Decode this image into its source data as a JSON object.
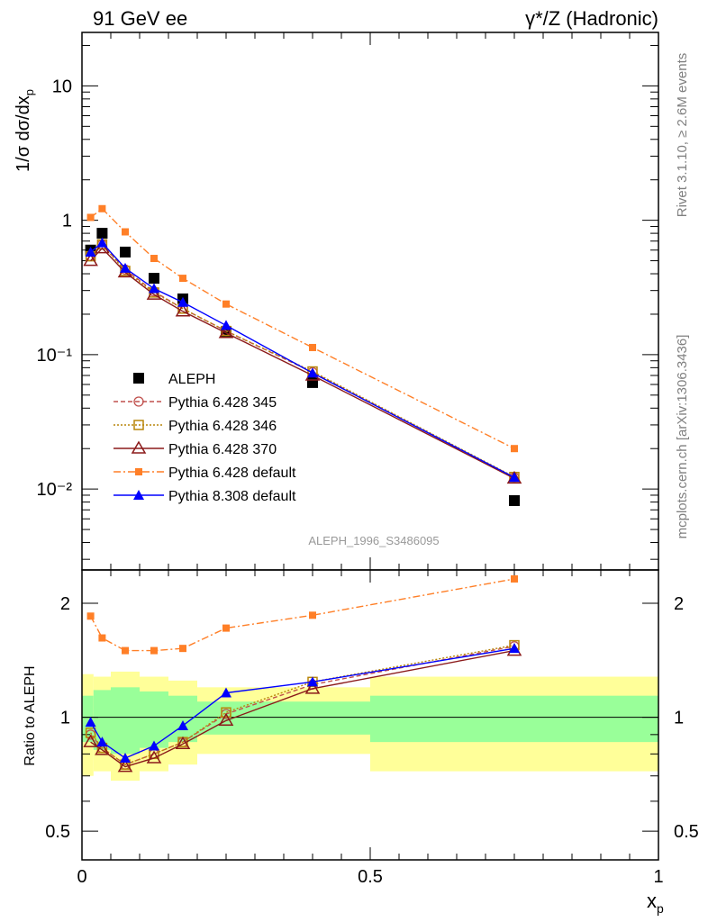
{
  "header": {
    "left_title": "91 GeV ee",
    "right_title": "γ*/Z (Hadronic)"
  },
  "side_text": {
    "rivet": "Rivet 3.1.10, ≥ 2.6M events",
    "mcplots": "mcplots.cern.ch [arXiv:1306.3436]"
  },
  "analysis_tag": "ALEPH_1996_S3486095",
  "colors": {
    "aleph": "#000000",
    "p345": "#c0504d",
    "p346": "#b8860b",
    "p370": "#8b1a1a",
    "p6def": "#ff7f27",
    "p8def": "#0000ff",
    "band_inner": "#99ff99",
    "band_outer": "#ffff99"
  },
  "chart_data": [
    {
      "type": "line",
      "panel": "main",
      "ylabel": "1/σ dσ/dx_p",
      "yscale": "log",
      "ylim": [
        0.0025,
        25
      ],
      "xlim": [
        0,
        1
      ],
      "y_ticks": [
        "10⁻²",
        "10⁻¹",
        "1",
        "10"
      ],
      "x": [
        0.015,
        0.035,
        0.075,
        0.125,
        0.175,
        0.25,
        0.4,
        0.75
      ],
      "series": [
        {
          "name": "ALEPH",
          "style": "data",
          "values": [
            0.6,
            0.8,
            0.58,
            0.37,
            0.26,
            0.148,
            0.062,
            0.0082
          ]
        },
        {
          "name": "Pythia 6.428 345",
          "style": "p345",
          "values": [
            0.54,
            0.66,
            0.43,
            0.295,
            0.22,
            0.15,
            0.074,
            0.0122
          ]
        },
        {
          "name": "Pythia 6.428 346",
          "style": "p346",
          "values": [
            0.54,
            0.66,
            0.42,
            0.29,
            0.22,
            0.15,
            0.075,
            0.0123
          ]
        },
        {
          "name": "Pythia 6.428 370",
          "style": "p370",
          "values": [
            0.5,
            0.62,
            0.41,
            0.28,
            0.21,
            0.145,
            0.07,
            0.012
          ]
        },
        {
          "name": "Pythia 6.428 default",
          "style": "p6def",
          "values": [
            1.05,
            1.22,
            0.82,
            0.52,
            0.37,
            0.238,
            0.113,
            0.02
          ]
        },
        {
          "name": "Pythia 8.308 default",
          "style": "p8def",
          "values": [
            0.58,
            0.68,
            0.44,
            0.31,
            0.245,
            0.165,
            0.073,
            0.0122
          ]
        }
      ]
    },
    {
      "type": "line",
      "panel": "ratio",
      "xlabel": "x_p",
      "ylabel": "Ratio to ALEPH",
      "yscale": "log",
      "ylim": [
        0.42,
        2.45
      ],
      "xlim": [
        0,
        1
      ],
      "x_ticks": [
        "0",
        "0.5",
        "1"
      ],
      "y_ticks": [
        "0.5",
        "1",
        "2"
      ],
      "x": [
        0.015,
        0.035,
        0.075,
        0.125,
        0.175,
        0.25,
        0.4,
        0.75
      ],
      "bands": {
        "edges": [
          0,
          0.02,
          0.05,
          0.1,
          0.15,
          0.2,
          0.3,
          0.5,
          1.0
        ],
        "inner": [
          0.14,
          0.18,
          0.2,
          0.17,
          0.14,
          0.1,
          0.1,
          0.14
        ],
        "outer": [
          0.3,
          0.28,
          0.32,
          0.28,
          0.25,
          0.2,
          0.2,
          0.28
        ]
      },
      "series": [
        {
          "name": "Pythia 6.428 345",
          "style": "p345",
          "values": [
            0.9,
            0.83,
            0.75,
            0.8,
            0.86,
            1.02,
            1.22,
            1.54
          ]
        },
        {
          "name": "Pythia 6.428 346",
          "style": "p346",
          "values": [
            0.91,
            0.83,
            0.75,
            0.8,
            0.86,
            1.03,
            1.24,
            1.55
          ]
        },
        {
          "name": "Pythia 6.428 370",
          "style": "p370",
          "values": [
            0.86,
            0.82,
            0.74,
            0.78,
            0.85,
            0.98,
            1.19,
            1.5
          ]
        },
        {
          "name": "Pythia 6.428 default",
          "style": "p6def",
          "values": [
            1.85,
            1.62,
            1.5,
            1.5,
            1.52,
            1.72,
            1.86,
            2.32
          ]
        },
        {
          "name": "Pythia 8.308 default",
          "style": "p8def",
          "values": [
            0.97,
            0.86,
            0.78,
            0.84,
            0.95,
            1.16,
            1.24,
            1.52
          ]
        }
      ]
    }
  ]
}
